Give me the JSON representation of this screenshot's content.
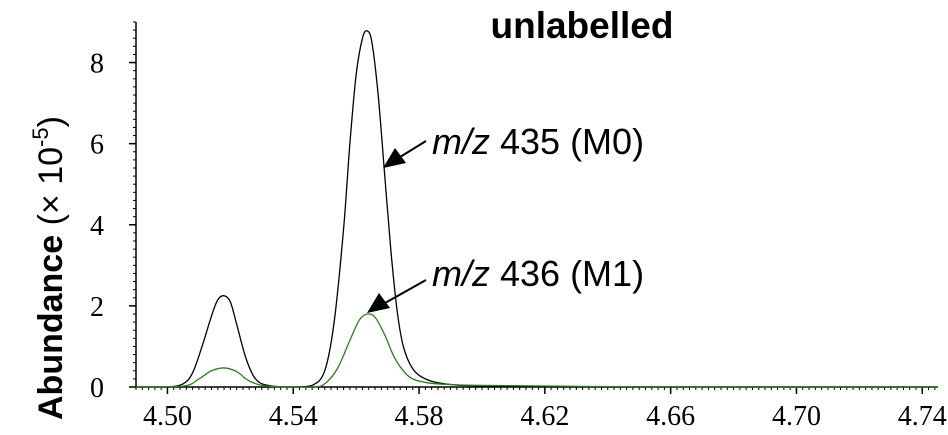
{
  "chart_data": {
    "type": "line",
    "title": "unlabelled",
    "ylabel_bold": "Abundance",
    "ylabel_rest": " (× 10",
    "ylabel_exp": "-5",
    "ylabel_close": ")",
    "xlim": [
      4.49,
      4.745
    ],
    "ylim": [
      0,
      9.0
    ],
    "xticks": [
      "4.50",
      "4.54",
      "4.58",
      "4.62",
      "4.66",
      "4.70",
      "4.74"
    ],
    "yticks": [
      "0",
      "2",
      "4",
      "6",
      "8"
    ],
    "series": [
      {
        "key": "M0",
        "color": "#000000",
        "x": [
          4.49,
          4.5,
          4.505,
          4.508,
          4.511,
          4.514,
          4.516,
          4.518,
          4.52,
          4.522,
          4.525,
          4.528,
          4.532,
          4.54,
          4.546,
          4.55,
          4.553,
          4.556,
          4.558,
          4.56,
          4.562,
          4.5635,
          4.565,
          4.567,
          4.569,
          4.571,
          4.573,
          4.575,
          4.578,
          4.582,
          4.588,
          4.6,
          4.64,
          4.7,
          4.745
        ],
        "y": [
          0.0,
          0.0,
          0.08,
          0.35,
          1.0,
          1.75,
          2.15,
          2.25,
          2.1,
          1.55,
          0.7,
          0.2,
          0.04,
          0.0,
          0.04,
          0.4,
          1.6,
          3.9,
          6.0,
          7.7,
          8.6,
          8.78,
          8.5,
          7.2,
          5.3,
          3.4,
          1.9,
          1.0,
          0.45,
          0.2,
          0.08,
          0.03,
          0.0,
          0.0,
          0.0
        ]
      },
      {
        "key": "M1",
        "color": "#2e7d1e",
        "x": [
          4.49,
          4.505,
          4.51,
          4.514,
          4.518,
          4.522,
          4.526,
          4.532,
          4.546,
          4.55,
          4.554,
          4.558,
          4.561,
          4.5635,
          4.566,
          4.569,
          4.572,
          4.575,
          4.578,
          4.583,
          4.59,
          4.6,
          4.64,
          4.7,
          4.745
        ],
        "y": [
          0.0,
          0.02,
          0.2,
          0.4,
          0.47,
          0.38,
          0.15,
          0.02,
          0.0,
          0.08,
          0.45,
          1.15,
          1.65,
          1.8,
          1.72,
          1.3,
          0.75,
          0.4,
          0.2,
          0.1,
          0.06,
          0.04,
          0.01,
          0.0,
          0.0
        ]
      }
    ],
    "annotations": [
      {
        "key": "M0",
        "prefix_italic": "m/z",
        "text": " 435 (M0)"
      },
      {
        "key": "M1",
        "prefix_italic": "m/z",
        "text": " 436 (M1)"
      }
    ],
    "grid": false
  },
  "colors": {
    "axis": "#000000",
    "m0_line": "#000000",
    "m1_line": "#2e7d1e"
  }
}
